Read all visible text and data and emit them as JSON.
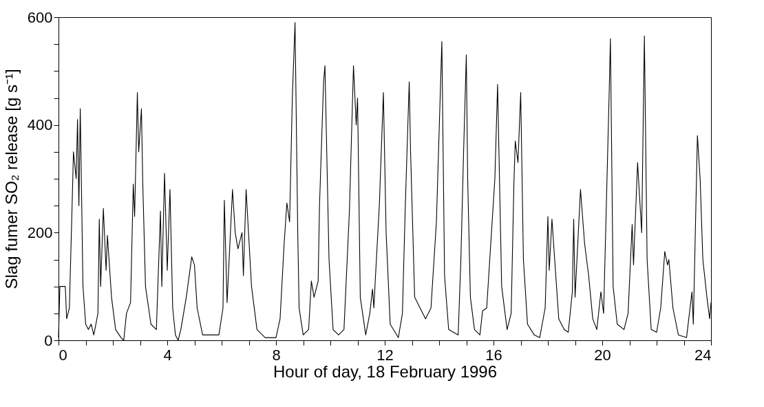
{
  "chart_data": {
    "type": "line",
    "xlabel": "Hour of day, 18 February 1996",
    "ylabel": "Slag fumer SO₂ release [g s⁻¹]",
    "xlim": [
      0,
      24
    ],
    "ylim": [
      0,
      600
    ],
    "xticks": [
      0,
      {
        "value": 1,
        "label": null
      },
      {
        "value": 2,
        "label": null
      },
      {
        "value": 3,
        "label": null
      },
      4,
      {
        "value": 5,
        "label": null
      },
      {
        "value": 6,
        "label": null
      },
      {
        "value": 7,
        "label": null
      },
      8,
      {
        "value": 9,
        "label": null
      },
      {
        "value": 10,
        "label": null
      },
      {
        "value": 11,
        "label": null
      },
      12,
      {
        "value": 13,
        "label": null
      },
      {
        "value": 14,
        "label": null
      },
      {
        "value": 15,
        "label": null
      },
      16,
      {
        "value": 17,
        "label": null
      },
      {
        "value": 18,
        "label": null
      },
      {
        "value": 19,
        "label": null
      },
      20,
      {
        "value": 21,
        "label": null
      },
      {
        "value": 22,
        "label": null
      },
      {
        "value": 23,
        "label": null
      },
      24
    ],
    "yticks": [
      0,
      {
        "value": 50,
        "label": null
      },
      {
        "value": 100,
        "label": null
      },
      {
        "value": 150,
        "label": null
      },
      200,
      {
        "value": 250,
        "label": null
      },
      {
        "value": 300,
        "label": null
      },
      {
        "value": 350,
        "label": null
      },
      400,
      {
        "value": 450,
        "label": null
      },
      {
        "value": 500,
        "label": null
      },
      {
        "value": 550,
        "label": null
      },
      600
    ],
    "grid": false,
    "marker": "none",
    "line_style": "solid",
    "series": [
      {
        "color": "#000000",
        "x": [
          0.0,
          0.05,
          0.25,
          0.3,
          0.4,
          0.5,
          0.55,
          0.65,
          0.7,
          0.75,
          0.8,
          0.9,
          1.0,
          1.1,
          1.2,
          1.3,
          1.45,
          1.5,
          1.55,
          1.65,
          1.75,
          1.8,
          1.95,
          2.1,
          2.3,
          2.4,
          2.5,
          2.65,
          2.75,
          2.8,
          2.9,
          2.95,
          3.05,
          3.1,
          3.2,
          3.4,
          3.6,
          3.75,
          3.8,
          3.9,
          4.0,
          4.1,
          4.2,
          4.3,
          4.4,
          4.5,
          4.7,
          4.9,
          5.0,
          5.1,
          5.3,
          5.6,
          5.9,
          6.05,
          6.1,
          6.2,
          6.4,
          6.5,
          6.6,
          6.75,
          6.8,
          6.9,
          7.1,
          7.3,
          7.6,
          8.0,
          8.15,
          8.3,
          8.4,
          8.5,
          8.6,
          8.7,
          8.8,
          8.85,
          9.0,
          9.2,
          9.3,
          9.4,
          9.55,
          9.6,
          9.75,
          9.8,
          9.95,
          10.1,
          10.3,
          10.5,
          10.7,
          10.85,
          10.95,
          11.0,
          11.1,
          11.3,
          11.45,
          11.55,
          11.6,
          11.65,
          11.8,
          11.95,
          12.05,
          12.2,
          12.5,
          12.65,
          12.75,
          12.9,
          12.95,
          13.1,
          13.3,
          13.5,
          13.7,
          13.9,
          14.1,
          14.2,
          14.35,
          14.7,
          14.8,
          14.9,
          15.0,
          15.05,
          15.15,
          15.3,
          15.5,
          15.6,
          15.75,
          15.9,
          16.05,
          16.15,
          16.3,
          16.5,
          16.65,
          16.75,
          16.8,
          16.9,
          17.0,
          17.1,
          17.25,
          17.5,
          17.7,
          17.9,
          18.0,
          18.05,
          18.15,
          18.25,
          18.4,
          18.6,
          18.75,
          18.9,
          18.95,
          19.0,
          19.2,
          19.35,
          19.5,
          19.65,
          19.8,
          19.95,
          20.05,
          20.25,
          20.3,
          20.4,
          20.55,
          20.8,
          20.95,
          21.1,
          21.15,
          21.3,
          21.45,
          21.55,
          21.65,
          21.8,
          22.0,
          22.15,
          22.3,
          22.4,
          22.45,
          22.6,
          22.8,
          23.1,
          23.3,
          23.35,
          23.5,
          23.6,
          23.7,
          23.85,
          23.95,
          24.0
        ],
        "values": [
          5,
          100,
          100,
          40,
          60,
          250,
          350,
          300,
          410,
          250,
          430,
          100,
          30,
          20,
          30,
          10,
          50,
          225,
          100,
          245,
          130,
          195,
          80,
          20,
          5,
          0,
          50,
          70,
          290,
          230,
          460,
          350,
          430,
          290,
          100,
          30,
          20,
          240,
          100,
          310,
          130,
          280,
          60,
          10,
          0,
          20,
          80,
          155,
          140,
          60,
          10,
          10,
          10,
          60,
          260,
          70,
          280,
          200,
          170,
          200,
          120,
          280,
          100,
          20,
          5,
          5,
          40,
          180,
          255,
          220,
          450,
          590,
          200,
          60,
          10,
          20,
          110,
          80,
          110,
          250,
          480,
          510,
          150,
          20,
          10,
          20,
          240,
          510,
          400,
          450,
          80,
          10,
          50,
          95,
          60,
          110,
          250,
          460,
          200,
          30,
          5,
          50,
          240,
          480,
          350,
          80,
          60,
          40,
          60,
          220,
          555,
          120,
          20,
          10,
          150,
          350,
          530,
          300,
          80,
          20,
          10,
          55,
          60,
          180,
          300,
          475,
          100,
          20,
          50,
          290,
          370,
          330,
          460,
          150,
          30,
          10,
          5,
          60,
          230,
          130,
          225,
          150,
          40,
          20,
          15,
          90,
          225,
          80,
          280,
          180,
          120,
          40,
          20,
          90,
          50,
          450,
          560,
          100,
          30,
          20,
          50,
          215,
          140,
          330,
          200,
          565,
          150,
          20,
          15,
          60,
          165,
          140,
          150,
          60,
          10,
          5,
          90,
          30,
          380,
          300,
          150,
          80,
          40,
          70
        ]
      }
    ]
  }
}
